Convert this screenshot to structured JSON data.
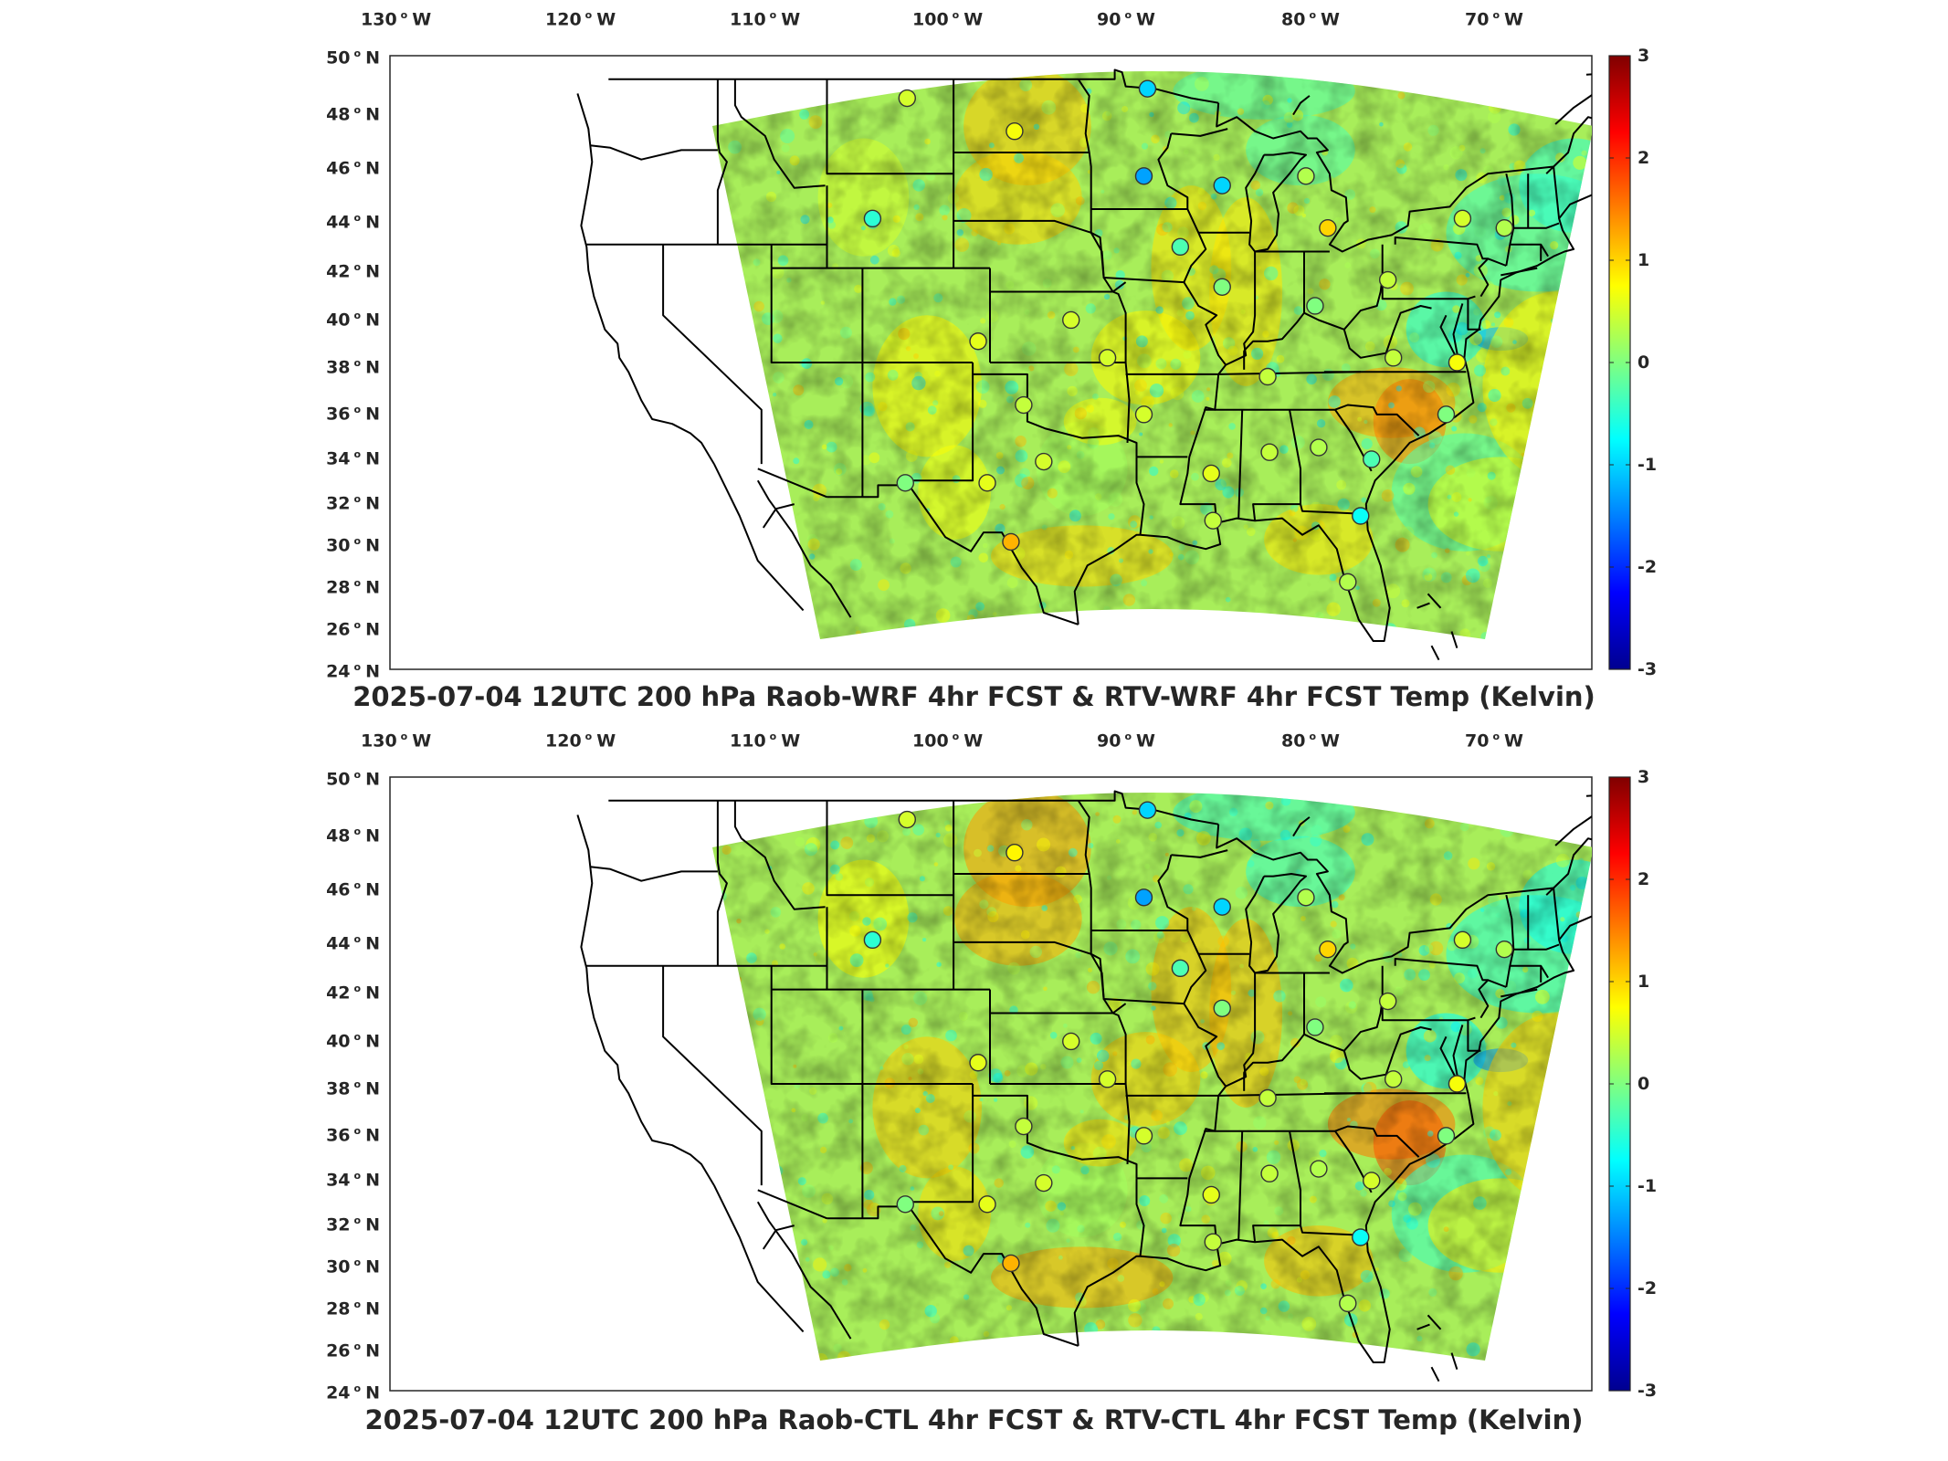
{
  "panels": [
    {
      "id": "top",
      "title": "2025-07-04 12UTC 200 hPa Raob-WRF 4hr FCST & RTV-WRF 4hr FCST Temp (Kelvin)",
      "variant": 0
    },
    {
      "id": "bottom",
      "title": "2025-07-04 12UTC 200 hPa Raob-CTL 4hr FCST & RTV-CTL 4hr FCST Temp (Kelvin)",
      "variant": 1
    }
  ],
  "lon_labels": [
    {
      "value": "130",
      "dir": "W"
    },
    {
      "value": "120",
      "dir": "W"
    },
    {
      "value": "110",
      "dir": "W"
    },
    {
      "value": "100",
      "dir": "W"
    },
    {
      "value": "90",
      "dir": "W"
    },
    {
      "value": "80",
      "dir": "W"
    },
    {
      "value": "70",
      "dir": "W"
    }
  ],
  "lat_labels": [
    {
      "value": "50",
      "dir": "N"
    },
    {
      "value": "48",
      "dir": "N"
    },
    {
      "value": "46",
      "dir": "N"
    },
    {
      "value": "44",
      "dir": "N"
    },
    {
      "value": "42",
      "dir": "N"
    },
    {
      "value": "40",
      "dir": "N"
    },
    {
      "value": "38",
      "dir": "N"
    },
    {
      "value": "36",
      "dir": "N"
    },
    {
      "value": "34",
      "dir": "N"
    },
    {
      "value": "32",
      "dir": "N"
    },
    {
      "value": "30",
      "dir": "N"
    },
    {
      "value": "28",
      "dir": "N"
    },
    {
      "value": "26",
      "dir": "N"
    },
    {
      "value": "24",
      "dir": "N"
    }
  ],
  "colorbar": {
    "ticks": [
      "3",
      "2",
      "1",
      "0",
      "-1",
      "-2",
      "-3"
    ],
    "colormap": [
      "#00008f",
      "#0000ff",
      "#0080ff",
      "#00ffff",
      "#80ff80",
      "#ffff00",
      "#ff8000",
      "#ff0000",
      "#800000"
    ]
  },
  "raob_stations_top": [
    {
      "lon": -106.6,
      "lat": 48.2,
      "diff": 0.5
    },
    {
      "lon": -93.4,
      "lat": 48.6,
      "diff": -1.0
    },
    {
      "lon": -100.7,
      "lat": 46.8,
      "diff": 0.7
    },
    {
      "lon": -93.6,
      "lat": 44.9,
      "diff": -1.3
    },
    {
      "lon": -89.3,
      "lat": 44.5,
      "diff": -1.0
    },
    {
      "lon": -84.7,
      "lat": 44.9,
      "diff": 0.3
    },
    {
      "lon": -108.5,
      "lat": 43.1,
      "diff": -0.5
    },
    {
      "lon": -91.6,
      "lat": 41.9,
      "diff": -0.3
    },
    {
      "lon": -83.5,
      "lat": 42.7,
      "diff": 1.0
    },
    {
      "lon": -76.1,
      "lat": 43.1,
      "diff": 0.5
    },
    {
      "lon": -73.8,
      "lat": 42.7,
      "diff": 0.3
    },
    {
      "lon": -89.3,
      "lat": 40.2,
      "diff": 0.0
    },
    {
      "lon": -84.2,
      "lat": 39.4,
      "diff": 0.0
    },
    {
      "lon": -80.2,
      "lat": 40.5,
      "diff": 0.4
    },
    {
      "lon": -97.6,
      "lat": 38.8,
      "diff": 0.5
    },
    {
      "lon": -102.7,
      "lat": 37.9,
      "diff": 0.6
    },
    {
      "lon": -95.6,
      "lat": 37.2,
      "diff": 0.5
    },
    {
      "lon": -79.9,
      "lat": 37.2,
      "diff": 0.4
    },
    {
      "lon": -76.4,
      "lat": 37.0,
      "diff": 0.7
    },
    {
      "lon": -86.8,
      "lat": 36.4,
      "diff": 0.4
    },
    {
      "lon": -100.2,
      "lat": 35.2,
      "diff": 0.4
    },
    {
      "lon": -93.6,
      "lat": 34.8,
      "diff": 0.5
    },
    {
      "lon": -77.0,
      "lat": 34.8,
      "diff": 0.0
    },
    {
      "lon": -99.1,
      "lat": 32.8,
      "diff": 0.5
    },
    {
      "lon": -89.9,
      "lat": 32.3,
      "diff": 0.6
    },
    {
      "lon": -86.7,
      "lat": 33.2,
      "diff": 0.4
    },
    {
      "lon": -84.0,
      "lat": 33.4,
      "diff": 0.3
    },
    {
      "lon": -81.1,
      "lat": 32.9,
      "diff": -0.3
    },
    {
      "lon": -106.7,
      "lat": 31.9,
      "diff": 0.0
    },
    {
      "lon": -102.2,
      "lat": 31.9,
      "diff": 0.6
    },
    {
      "lon": -81.7,
      "lat": 30.5,
      "diff": -0.7
    },
    {
      "lon": -89.8,
      "lat": 30.3,
      "diff": 0.4
    },
    {
      "lon": -100.9,
      "lat": 29.4,
      "diff": 1.2
    },
    {
      "lon": -82.4,
      "lat": 27.7,
      "diff": 0.3
    }
  ],
  "raob_stations_bottom": [
    {
      "lon": -106.6,
      "lat": 48.2,
      "diff": 0.5
    },
    {
      "lon": -93.4,
      "lat": 48.6,
      "diff": -1.0
    },
    {
      "lon": -100.7,
      "lat": 46.8,
      "diff": 0.8
    },
    {
      "lon": -93.6,
      "lat": 44.9,
      "diff": -1.3
    },
    {
      "lon": -89.3,
      "lat": 44.5,
      "diff": -1.0
    },
    {
      "lon": -84.7,
      "lat": 44.9,
      "diff": 0.3
    },
    {
      "lon": -108.5,
      "lat": 43.1,
      "diff": -0.5
    },
    {
      "lon": -91.6,
      "lat": 41.9,
      "diff": -0.3
    },
    {
      "lon": -83.5,
      "lat": 42.7,
      "diff": 1.0
    },
    {
      "lon": -76.1,
      "lat": 43.1,
      "diff": 0.5
    },
    {
      "lon": -73.8,
      "lat": 42.7,
      "diff": 0.3
    },
    {
      "lon": -89.3,
      "lat": 40.2,
      "diff": 0.0
    },
    {
      "lon": -84.2,
      "lat": 39.4,
      "diff": 0.0
    },
    {
      "lon": -80.2,
      "lat": 40.5,
      "diff": 0.4
    },
    {
      "lon": -97.6,
      "lat": 38.8,
      "diff": 0.5
    },
    {
      "lon": -102.7,
      "lat": 37.9,
      "diff": 0.6
    },
    {
      "lon": -95.6,
      "lat": 37.2,
      "diff": 0.5
    },
    {
      "lon": -79.9,
      "lat": 37.2,
      "diff": 0.4
    },
    {
      "lon": -76.4,
      "lat": 37.0,
      "diff": 0.7
    },
    {
      "lon": -86.8,
      "lat": 36.4,
      "diff": 0.4
    },
    {
      "lon": -100.2,
      "lat": 35.2,
      "diff": 0.4
    },
    {
      "lon": -93.6,
      "lat": 34.8,
      "diff": 0.5
    },
    {
      "lon": -77.0,
      "lat": 34.8,
      "diff": 0.0
    },
    {
      "lon": -99.1,
      "lat": 32.8,
      "diff": 0.5
    },
    {
      "lon": -89.9,
      "lat": 32.3,
      "diff": 0.6
    },
    {
      "lon": -86.7,
      "lat": 33.2,
      "diff": 0.4
    },
    {
      "lon": -84.0,
      "lat": 33.4,
      "diff": 0.3
    },
    {
      "lon": -81.1,
      "lat": 32.9,
      "diff": 0.5
    },
    {
      "lon": -106.7,
      "lat": 31.9,
      "diff": 0.0
    },
    {
      "lon": -102.2,
      "lat": 31.9,
      "diff": 0.6
    },
    {
      "lon": -81.7,
      "lat": 30.5,
      "diff": -0.7
    },
    {
      "lon": -89.8,
      "lat": 30.3,
      "diff": 0.4
    },
    {
      "lon": -100.9,
      "lat": 29.4,
      "diff": 1.2
    },
    {
      "lon": -82.4,
      "lat": 27.7,
      "diff": 0.3
    }
  ]
}
